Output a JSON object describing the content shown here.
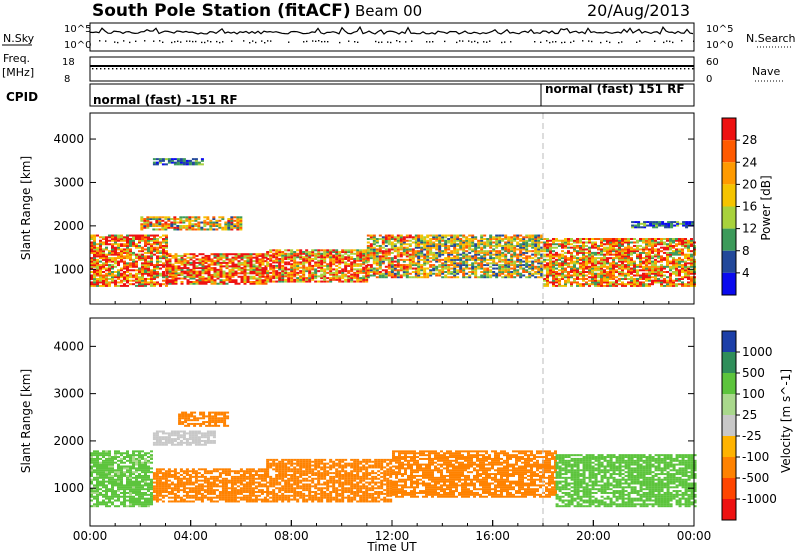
{
  "header": {
    "station": "South Pole Station (fitACF)",
    "beam": "Beam 00",
    "date": "20/Aug/2013"
  },
  "side_labels": {
    "nsky": "N.Sky",
    "freq": "Freq.",
    "freq_unit": "[MHz]",
    "cpid": "CPID",
    "nsearch": "N.Search",
    "nave": "Nave"
  },
  "noise_axis": {
    "left_top": "10^5",
    "left_bottom": "10^0",
    "right_top": "10^5",
    "right_bottom": "10^0"
  },
  "freq_axis": {
    "left_top": "18",
    "left_bottom": "8",
    "right_top": "60",
    "right_bottom": "0"
  },
  "cpid_segments": [
    {
      "label": "normal (fast) -151 RF"
    },
    {
      "label": "normal (fast) 151 RF"
    }
  ],
  "chart_data": [
    {
      "type": "heatmap",
      "title": "Power",
      "ylabel": "Slant Range [km]",
      "ylim": [
        200,
        4600
      ],
      "xlim": [
        "00:00",
        "24:00"
      ],
      "y_ticks": [
        1000,
        2000,
        3000,
        4000
      ],
      "colorbar": {
        "label": "Power [dB]",
        "ticks": [
          "28",
          "24",
          "20",
          "16",
          "12",
          "8",
          "4"
        ],
        "colors": [
          "#ee1111",
          "#ff5a00",
          "#ff9a00",
          "#f5c400",
          "#a8d23c",
          "#3c9a5a",
          "#22489a",
          "#0a0aee"
        ]
      },
      "bands": [
        {
          "t0": 0.0,
          "t1": 3.0,
          "r0": 600,
          "r1": 1800,
          "value": 24
        },
        {
          "t0": 3.0,
          "t1": 7.0,
          "r0": 650,
          "r1": 1350,
          "value": 26
        },
        {
          "t0": 7.0,
          "t1": 11.0,
          "r0": 700,
          "r1": 1450,
          "value": 24
        },
        {
          "t0": 11.0,
          "t1": 13.0,
          "r0": 800,
          "r1": 1800,
          "value": 20
        },
        {
          "t0": 13.0,
          "t1": 18.0,
          "r0": 800,
          "r1": 1800,
          "value": 16
        },
        {
          "t0": 18.0,
          "t1": 24.0,
          "r0": 600,
          "r1": 1700,
          "value": 22
        },
        {
          "t0": 2.0,
          "t1": 6.0,
          "r0": 1900,
          "r1": 2200,
          "value": 18
        },
        {
          "t0": 21.5,
          "t1": 24.0,
          "r0": 1950,
          "r1": 2100,
          "value": 6
        },
        {
          "t0": 2.5,
          "t1": 4.5,
          "r0": 3400,
          "r1": 3550,
          "value": 6
        }
      ]
    },
    {
      "type": "heatmap",
      "title": "Velocity",
      "ylabel": "Slant Range [km]",
      "xlabel": "Time UT",
      "ylim": [
        200,
        4600
      ],
      "xlim": [
        "00:00",
        "24:00"
      ],
      "y_ticks": [
        1000,
        2000,
        3000,
        4000
      ],
      "x_ticks": [
        "00:00",
        "04:00",
        "08:00",
        "12:00",
        "16:00",
        "20:00",
        "00:00"
      ],
      "colorbar": {
        "label": "Velocity [m s^-1]",
        "ticks": [
          "1000",
          "500",
          "100",
          "25",
          "-25",
          "-100",
          "-500",
          "-1000"
        ],
        "colors": [
          "#1c3fa8",
          "#2f8e5a",
          "#5cc43c",
          "#a9d88c",
          "#c8c8c8",
          "#ffb300",
          "#ff8200",
          "#ff4500",
          "#ee1111"
        ]
      },
      "bands": [
        {
          "t0": 0.0,
          "t1": 2.5,
          "r0": 600,
          "r1": 1800,
          "value": 150
        },
        {
          "t0": 2.5,
          "t1": 5.0,
          "r0": 1900,
          "r1": 2200,
          "value": 0
        },
        {
          "t0": 2.5,
          "t1": 7.0,
          "r0": 700,
          "r1": 1400,
          "value": -300
        },
        {
          "t0": 7.0,
          "t1": 12.0,
          "r0": 700,
          "r1": 1600,
          "value": -250
        },
        {
          "t0": 12.0,
          "t1": 18.5,
          "r0": 800,
          "r1": 1800,
          "value": -350
        },
        {
          "t0": 18.5,
          "t1": 24.0,
          "r0": 600,
          "r1": 1700,
          "value": 300
        },
        {
          "t0": 3.5,
          "t1": 5.5,
          "r0": 2300,
          "r1": 2600,
          "value": -200
        }
      ]
    }
  ]
}
